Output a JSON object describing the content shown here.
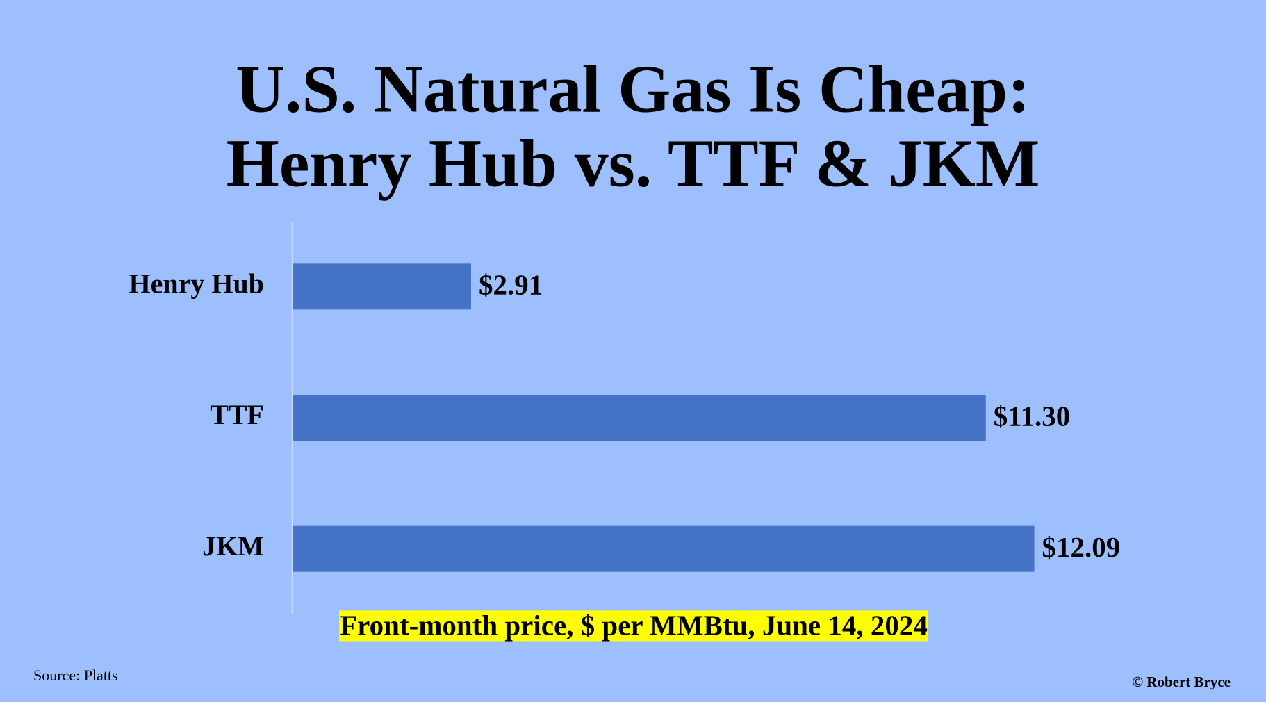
{
  "chart_data": {
    "type": "bar",
    "orientation": "horizontal",
    "title": [
      "U.S. Natural Gas Is Cheap:",
      "Henry Hub vs. TTF & JKM"
    ],
    "categories": [
      "Henry Hub",
      "TTF",
      "JKM"
    ],
    "values": [
      2.91,
      11.3,
      12.09
    ],
    "value_labels": [
      "$2.91",
      "$11.30",
      "$12.09"
    ],
    "color": "#4472c4",
    "annotation": "Front-month price, $ per MMBtu, June 14, 2024",
    "source": "Source: Platts",
    "credit": "© Robert Bryce"
  }
}
